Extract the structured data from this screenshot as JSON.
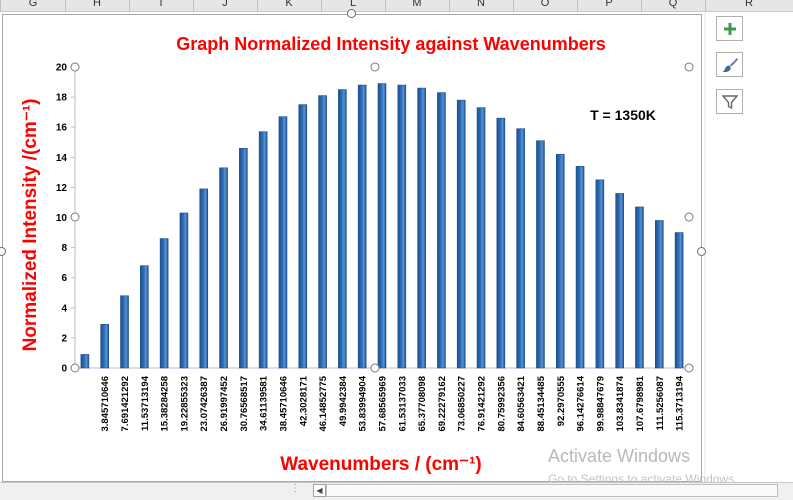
{
  "sheet": {
    "columns": [
      "G",
      "H",
      "I",
      "J",
      "K",
      "L",
      "M",
      "N",
      "O",
      "P",
      "Q",
      "R"
    ]
  },
  "chart_data": {
    "type": "bar",
    "title": "Graph Normalized Intensity against Wavenumbers",
    "xlabel": "Wavenumbers / (cm⁻¹)",
    "ylabel": "Normalized Intensity /(cm⁻¹)",
    "annotation": "T = 1350K",
    "ylim": [
      0,
      20
    ],
    "yticks": [
      0,
      2,
      4,
      6,
      8,
      10,
      12,
      14,
      16,
      18,
      20
    ],
    "grid": false,
    "legend": "none",
    "bar_color": "#2f6fb8",
    "title_color": "#ff0000",
    "categories": [
      "",
      "3.845710646",
      "7.691421292",
      "11.53713194",
      "15.38284258",
      "19.22855323",
      "23.07426387",
      "26.91997452",
      "30.76568517",
      "34.61139581",
      "38.45710646",
      "42.3028171",
      "46.14852775",
      "49.9942384",
      "53.83994904",
      "57.68565969",
      "61.53137033",
      "65.37708098",
      "69.22279162",
      "73.06850227",
      "76.91421292",
      "80.75992356",
      "84.60563421",
      "88.45134485",
      "92.2970555",
      "96.14276614",
      "99.98847679",
      "103.8341874",
      "107.6798981",
      "111.5256087",
      "115.3713194"
    ],
    "values": [
      0.9,
      2.9,
      4.8,
      6.8,
      8.6,
      10.3,
      11.9,
      13.3,
      14.6,
      15.7,
      16.7,
      17.5,
      18.1,
      18.5,
      18.8,
      18.9,
      18.8,
      18.6,
      18.3,
      17.8,
      17.3,
      16.6,
      15.9,
      15.1,
      14.2,
      13.4,
      12.5,
      11.6,
      10.7,
      9.8,
      9.0
    ]
  },
  "watermark": {
    "line1": "Activate Windows",
    "line2": "Go to Settings to activate Windows."
  },
  "icons": {
    "add": "plus-icon",
    "style": "brush-icon",
    "filter": "filter-icon"
  }
}
